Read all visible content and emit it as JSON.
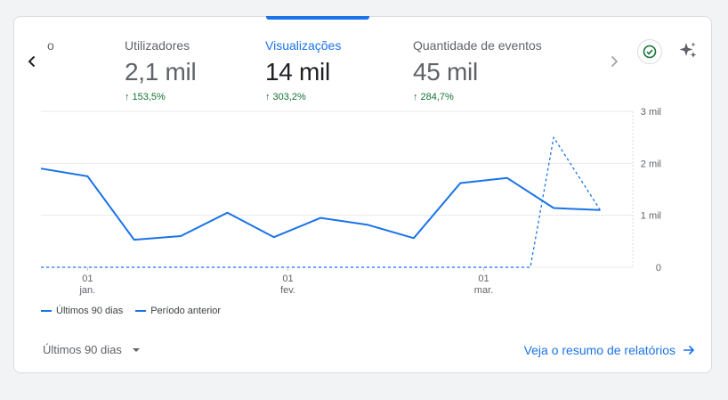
{
  "metrics": {
    "partial_label": "o",
    "items": [
      {
        "label": "Utilizadores",
        "value": "2,1 mil",
        "change": "153,5%"
      },
      {
        "label": "Visualizações",
        "value": "14 mil",
        "change": "303,2%"
      },
      {
        "label": "Quantidade de eventos",
        "value": "45 mil",
        "change": "284,7%"
      }
    ]
  },
  "icons": {
    "prev": "chevron-left-icon",
    "next": "chevron-right-icon",
    "check": "check-circle-icon",
    "insights": "sparkle-icon"
  },
  "colors": {
    "accent": "#1a73e8",
    "positive": "#137333",
    "text_muted": "#5f6368"
  },
  "chart_data": {
    "type": "line",
    "y_ticks": [
      "3 mil",
      "2 mil",
      "1 mil",
      "0"
    ],
    "y_values": [
      3000,
      2000,
      1000,
      0
    ],
    "ylim": [
      0,
      3000
    ],
    "x_ticks": [
      {
        "day": "01",
        "month": "jan.",
        "index": 1
      },
      {
        "day": "01",
        "month": "fev.",
        "index": 5.3
      },
      {
        "day": "01",
        "month": "mar.",
        "index": 9.5
      }
    ],
    "grid": true,
    "legend_position": "bottom-left",
    "series": [
      {
        "name": "Últimos 90 dias",
        "style": "solid",
        "x": [
          0,
          1,
          2,
          3,
          4,
          5,
          6,
          7,
          8,
          9,
          10,
          11,
          12
        ],
        "values": [
          1900,
          1750,
          530,
          600,
          1050,
          580,
          950,
          820,
          560,
          1620,
          1720,
          1140,
          1100
        ]
      },
      {
        "name": "Período anterior",
        "style": "dashed",
        "x": [
          0,
          10.5,
          11,
          12
        ],
        "values": [
          0,
          0,
          2500,
          1100
        ]
      }
    ]
  },
  "footer": {
    "period_label": "Últimos 90 dias",
    "report_link": "Veja o resumo de relatórios"
  }
}
